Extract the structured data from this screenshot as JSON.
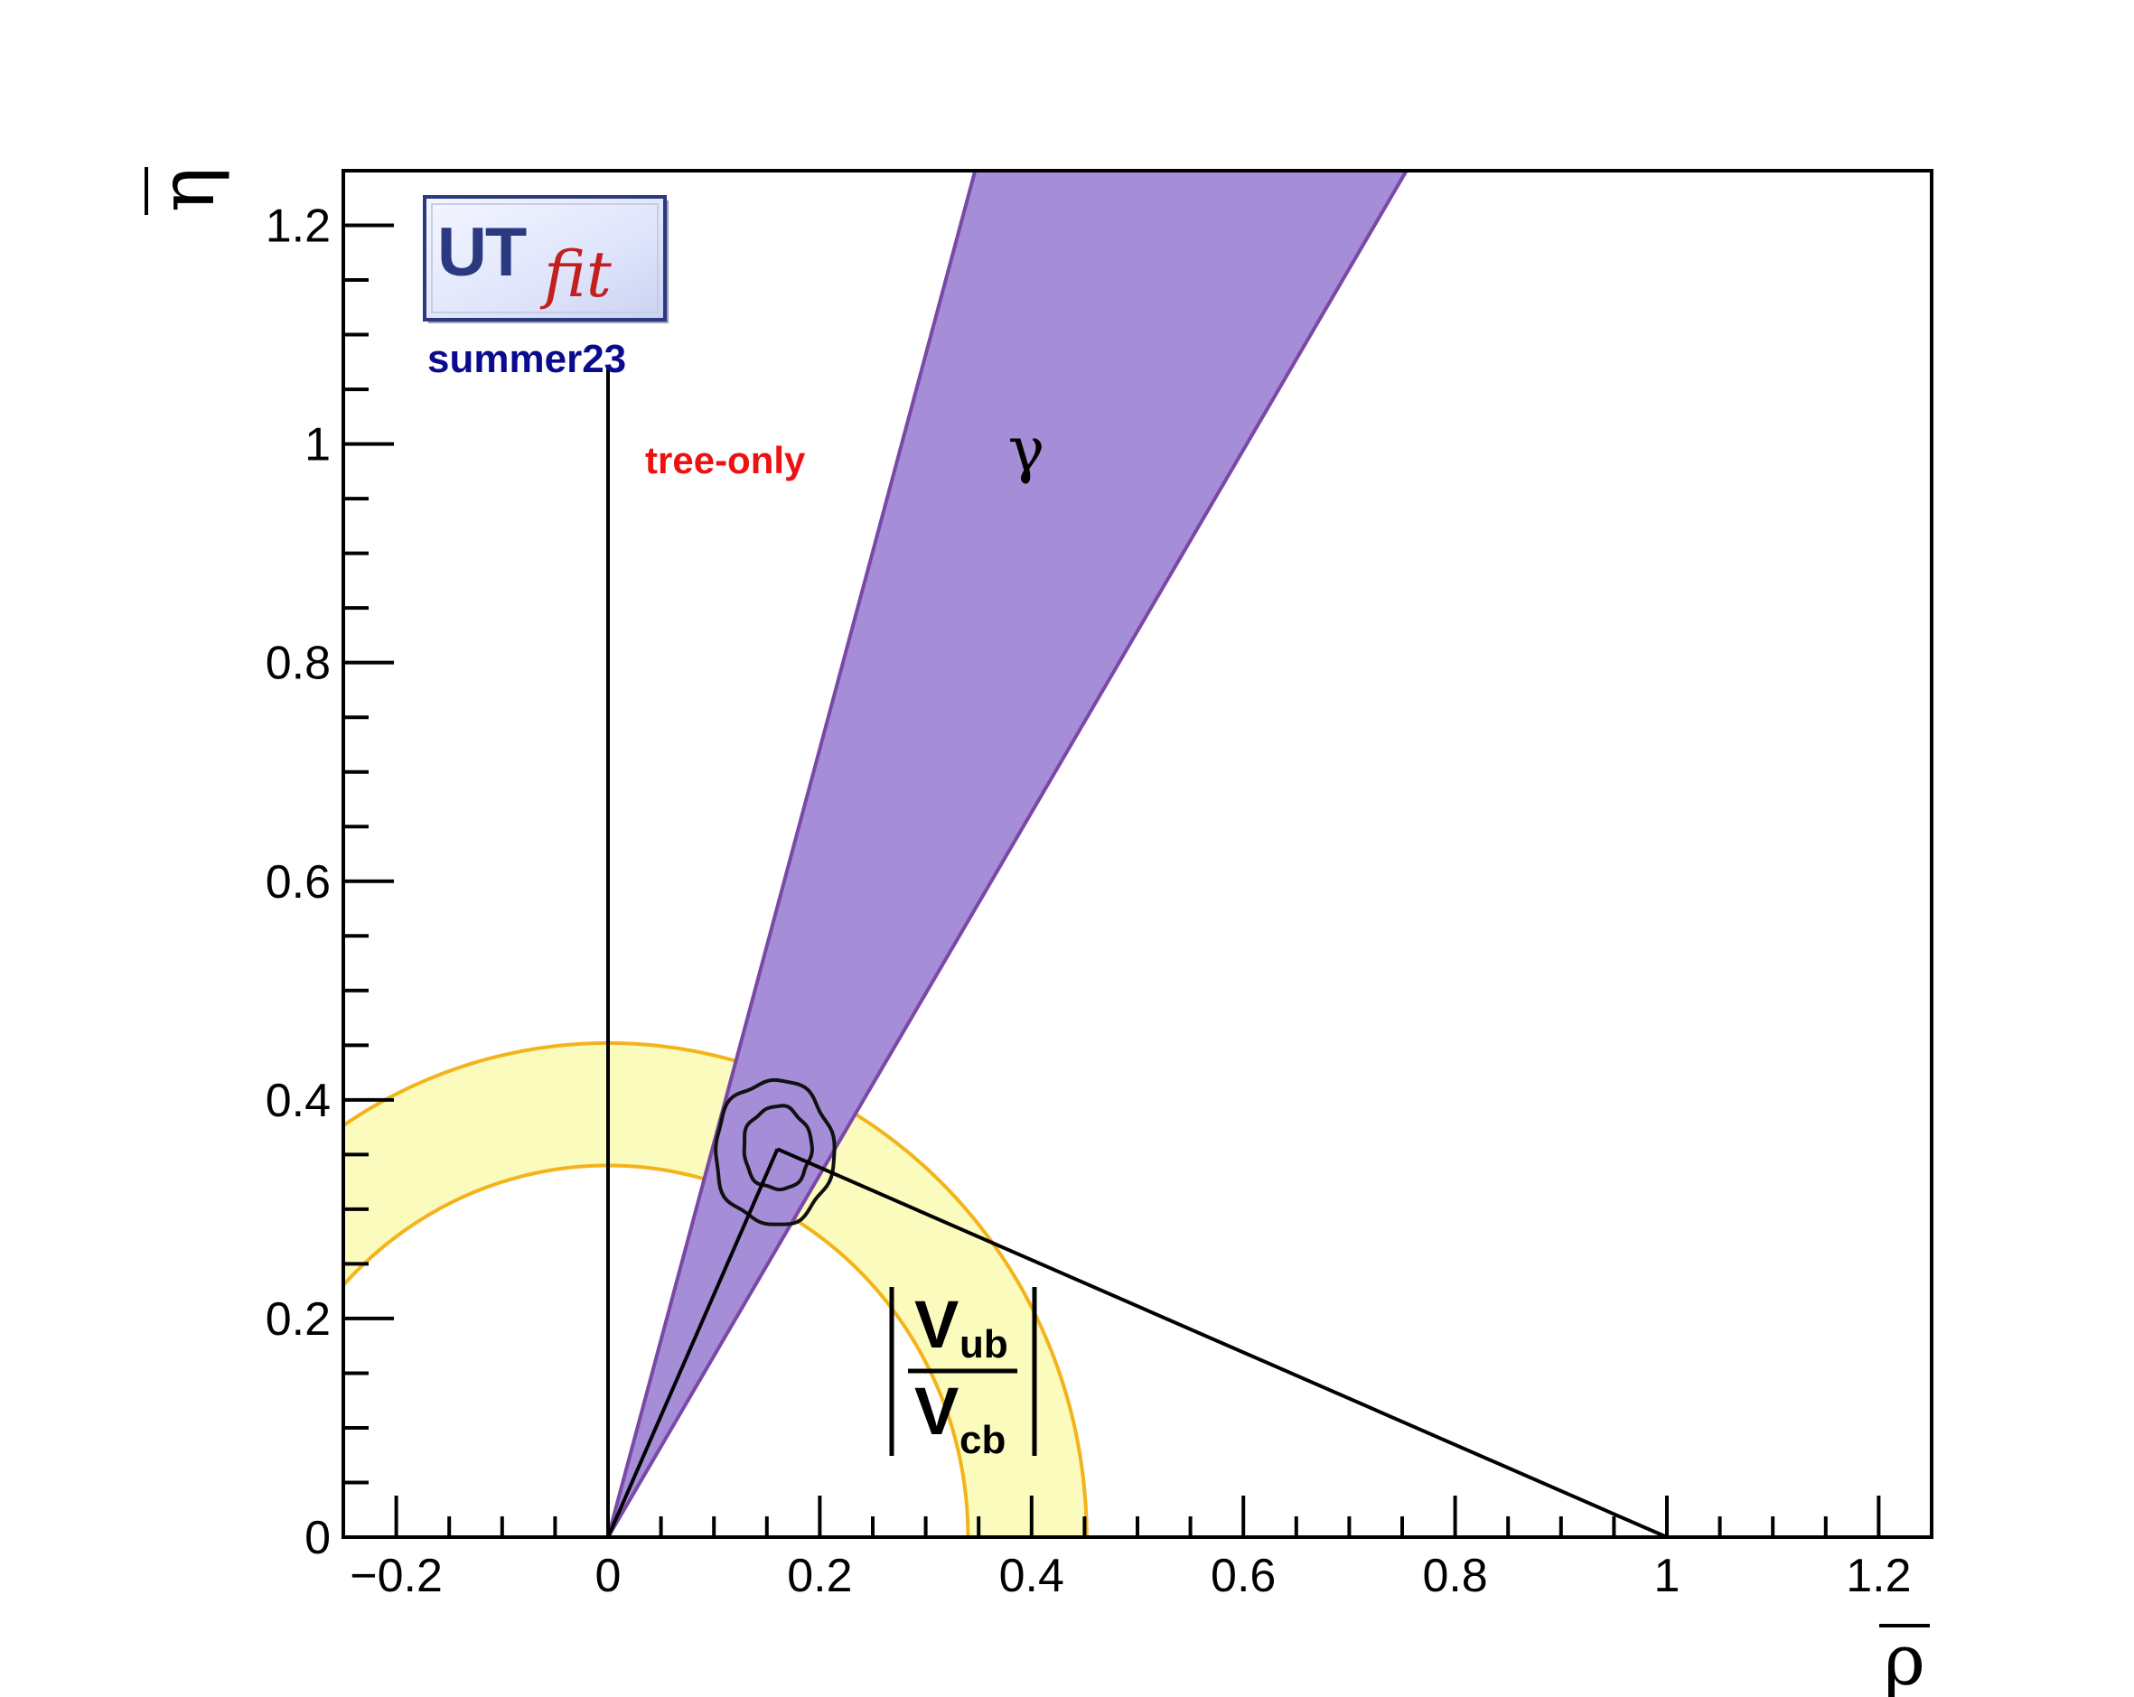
{
  "chart_data": {
    "type": "scatter",
    "xlabel": "ρ",
    "ylabel": "η",
    "xlim": [
      -0.25,
      1.25
    ],
    "ylim": [
      0,
      1.25
    ],
    "x_ticks": [
      {
        "value": -0.2,
        "label": "−0.2"
      },
      {
        "value": 0,
        "label": "0"
      },
      {
        "value": 0.2,
        "label": "0.2"
      },
      {
        "value": 0.4,
        "label": "0.4"
      },
      {
        "value": 0.6,
        "label": "0.6"
      },
      {
        "value": 0.8,
        "label": "0.8"
      },
      {
        "value": 1,
        "label": "1"
      },
      {
        "value": 1.2,
        "label": "1.2"
      }
    ],
    "y_ticks": [
      {
        "value": 0,
        "label": "0"
      },
      {
        "value": 0.2,
        "label": "0.2"
      },
      {
        "value": 0.4,
        "label": "0.4"
      },
      {
        "value": 0.6,
        "label": "0.6"
      },
      {
        "value": 0.8,
        "label": "0.8"
      },
      {
        "value": 1,
        "label": "1"
      },
      {
        "value": 1.2,
        "label": "1.2"
      }
    ],
    "x_minor_step": 0.05,
    "y_minor_step": 0.05,
    "grid": false,
    "vub_vcb_band": {
      "r_inner": 0.34,
      "r_outer": 0.452,
      "fill": "#fbfbbd",
      "stroke": "#f3b31b"
    },
    "gamma_band": {
      "angle_min_deg": 58.9,
      "angle_max_deg": 74.5,
      "fill": "#a68dd8",
      "stroke": "#7a48a6"
    },
    "vertical_line": {
      "x": 0,
      "y_top": 1.07
    },
    "triangle_apex": {
      "x": 0.16,
      "y": 0.355
    },
    "contours": [
      {
        "level": "inner",
        "rx": 0.032,
        "ry": 0.038,
        "cx": 0.16,
        "cy": 0.356
      },
      {
        "level": "outer",
        "rx": 0.056,
        "ry": 0.066,
        "cx": 0.157,
        "cy": 0.352
      }
    ],
    "annotations": {
      "gamma": {
        "text": "γ",
        "x": 0.395,
        "y": 0.99
      },
      "tree_only": {
        "text": "tree-only",
        "x": 0.035,
        "y": 0.985
      },
      "vub": "V",
      "vub_sub": "ub",
      "vcb": "V",
      "vcb_sub": "cb",
      "ratio_x": 0.335,
      "ratio_y": 0.17
    }
  },
  "logo": {
    "brand_main": "UT",
    "brand_sub": "fit",
    "edition": "summer23"
  },
  "colors": {
    "axis": "#000000",
    "tree_only": "#ee1111",
    "edition": "#0b0b8f",
    "logo_navy": "#2b3a80",
    "logo_red": "#c41f1f"
  }
}
